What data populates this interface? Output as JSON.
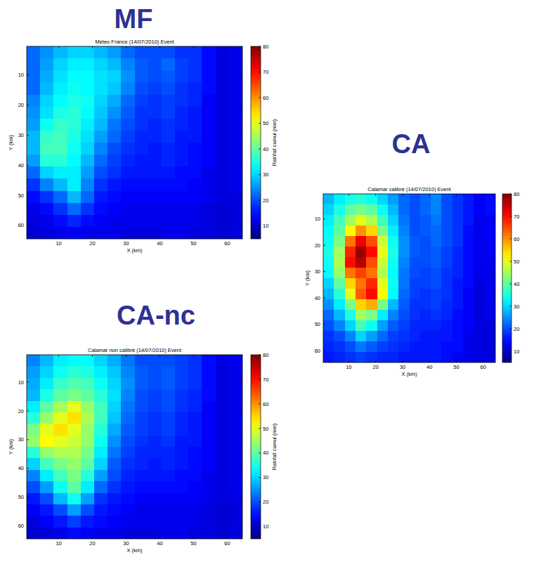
{
  "chart_data": [
    {
      "type": "heatmap",
      "header": "MF",
      "title": "Meteo France (14/07/2010) Event",
      "xlabel": "X (km)",
      "ylabel": "Y (km)",
      "colorbar_label": "Rainfall cumul (mm)",
      "xlim": [
        0.5,
        64.5
      ],
      "ylim": [
        0.5,
        64.5
      ],
      "xticks": [
        10,
        20,
        30,
        40,
        50,
        60
      ],
      "yticks": [
        10,
        20,
        30,
        40,
        50,
        60
      ],
      "color_range": [
        5,
        80
      ],
      "color_ticks": [
        10,
        20,
        30,
        40,
        50,
        60,
        70,
        80
      ],
      "cells": [
        [
          22,
          25,
          28,
          30,
          30,
          28,
          26,
          22,
          20,
          20,
          20,
          18,
          18,
          15,
          12,
          13
        ],
        [
          22,
          26,
          30,
          32,
          32,
          30,
          28,
          24,
          21,
          20,
          22,
          19,
          18,
          15,
          12,
          13
        ],
        [
          22,
          27,
          31,
          33,
          33,
          31,
          30,
          25,
          21,
          20,
          21,
          19,
          18,
          15,
          12,
          13
        ],
        [
          22,
          28,
          32,
          34,
          33,
          31,
          29,
          24,
          20,
          19,
          20,
          18,
          17,
          15,
          12,
          13
        ],
        [
          24,
          30,
          33,
          35,
          34,
          30,
          27,
          22,
          19,
          18,
          19,
          18,
          17,
          14,
          12,
          13
        ],
        [
          25,
          31,
          35,
          36,
          33,
          29,
          25,
          21,
          18,
          18,
          19,
          17,
          16,
          14,
          12,
          13
        ],
        [
          26,
          34,
          37,
          36,
          32,
          28,
          23,
          20,
          18,
          17,
          18,
          17,
          16,
          14,
          12,
          13
        ],
        [
          28,
          37,
          38,
          35,
          31,
          26,
          22,
          19,
          17,
          17,
          18,
          16,
          16,
          14,
          12,
          13
        ],
        [
          28,
          38,
          38,
          34,
          30,
          24,
          20,
          18,
          17,
          16,
          17,
          16,
          15,
          14,
          12,
          13
        ],
        [
          26,
          36,
          36,
          33,
          28,
          22,
          19,
          17,
          16,
          16,
          17,
          16,
          15,
          14,
          12,
          13
        ],
        [
          22,
          30,
          32,
          32,
          26,
          20,
          18,
          16,
          16,
          16,
          16,
          15,
          15,
          13,
          12,
          13
        ],
        [
          18,
          24,
          28,
          32,
          24,
          18,
          16,
          15,
          15,
          15,
          15,
          15,
          14,
          13,
          12,
          13
        ],
        [
          15,
          18,
          22,
          28,
          22,
          16,
          15,
          14,
          14,
          14,
          14,
          14,
          14,
          13,
          12,
          12
        ],
        [
          13,
          15,
          18,
          22,
          18,
          15,
          14,
          13,
          13,
          13,
          13,
          13,
          13,
          12,
          11,
          12
        ],
        [
          12,
          13,
          15,
          17,
          15,
          14,
          13,
          13,
          13,
          13,
          13,
          13,
          13,
          12,
          11,
          12
        ],
        [
          11,
          12,
          13,
          14,
          13,
          13,
          13,
          12,
          12,
          12,
          13,
          13,
          12,
          12,
          11,
          12
        ]
      ]
    },
    {
      "type": "heatmap",
      "header": "CA",
      "title": "Calamar calibré (14/07/2010) Event",
      "xlabel": "X (km)",
      "ylabel": "Y (km)",
      "xlim": [
        0.5,
        64.5
      ],
      "ylim": [
        0.5,
        64.5
      ],
      "xticks": [
        10,
        20,
        30,
        40,
        50,
        60
      ],
      "yticks": [
        10,
        20,
        30,
        40,
        50,
        60
      ],
      "color_range": [
        5,
        80
      ],
      "color_ticks": [
        10,
        20,
        30,
        40,
        50,
        60,
        70,
        80
      ],
      "cells": [
        [
          28,
          32,
          35,
          36,
          34,
          30,
          26,
          22,
          20,
          22,
          24,
          20,
          18,
          16,
          14,
          15
        ],
        [
          30,
          35,
          40,
          42,
          40,
          34,
          28,
          22,
          20,
          22,
          24,
          20,
          18,
          16,
          14,
          15
        ],
        [
          32,
          38,
          45,
          50,
          46,
          38,
          30,
          23,
          20,
          21,
          23,
          20,
          18,
          16,
          13,
          14
        ],
        [
          33,
          40,
          52,
          60,
          55,
          42,
          32,
          24,
          20,
          21,
          22,
          20,
          18,
          15,
          13,
          14
        ],
        [
          34,
          42,
          62,
          72,
          65,
          48,
          34,
          25,
          21,
          20,
          22,
          20,
          18,
          15,
          13,
          14
        ],
        [
          35,
          45,
          68,
          78,
          70,
          50,
          35,
          25,
          21,
          20,
          21,
          19,
          17,
          15,
          13,
          14
        ],
        [
          34,
          46,
          70,
          76,
          65,
          48,
          34,
          24,
          20,
          20,
          21,
          19,
          17,
          15,
          13,
          13
        ],
        [
          33,
          44,
          62,
          66,
          62,
          46,
          33,
          23,
          20,
          19,
          20,
          18,
          17,
          15,
          13,
          13
        ],
        [
          30,
          40,
          55,
          62,
          68,
          50,
          34,
          23,
          19,
          19,
          20,
          18,
          16,
          15,
          12,
          13
        ],
        [
          28,
          36,
          50,
          64,
          70,
          52,
          33,
          22,
          19,
          18,
          19,
          18,
          16,
          14,
          12,
          13
        ],
        [
          25,
          32,
          42,
          55,
          58,
          42,
          28,
          21,
          18,
          18,
          19,
          17,
          16,
          14,
          12,
          13
        ],
        [
          22,
          28,
          35,
          45,
          42,
          32,
          24,
          20,
          18,
          17,
          18,
          17,
          15,
          14,
          12,
          13
        ],
        [
          20,
          24,
          30,
          38,
          34,
          26,
          21,
          19,
          17,
          17,
          17,
          16,
          15,
          14,
          12,
          12
        ],
        [
          18,
          20,
          24,
          30,
          26,
          22,
          19,
          18,
          17,
          16,
          16,
          16,
          15,
          13,
          12,
          12
        ],
        [
          17,
          18,
          20,
          23,
          21,
          19,
          18,
          17,
          16,
          16,
          16,
          15,
          15,
          13,
          12,
          12
        ],
        [
          16,
          17,
          18,
          19,
          18,
          17,
          17,
          16,
          16,
          16,
          16,
          15,
          14,
          13,
          12,
          12
        ]
      ]
    },
    {
      "type": "heatmap",
      "header": "CA-nc",
      "title": "Calamar non calibré (14/07/2010) Event",
      "xlabel": "X (km)",
      "ylabel": "Y (km)",
      "colorbar_label": "Rainfall cumul (mm)",
      "xlim": [
        0.5,
        64.5
      ],
      "ylim": [
        0.5,
        64.5
      ],
      "xticks": [
        10,
        20,
        30,
        40,
        50,
        60
      ],
      "yticks": [
        10,
        20,
        30,
        40,
        50,
        60
      ],
      "color_range": [
        5,
        80
      ],
      "color_ticks": [
        10,
        20,
        30,
        40,
        50,
        60,
        70,
        80
      ],
      "cells": [
        [
          24,
          28,
          32,
          33,
          33,
          30,
          27,
          23,
          20,
          20,
          20,
          19,
          18,
          15,
          12,
          13
        ],
        [
          26,
          30,
          34,
          36,
          35,
          32,
          29,
          24,
          21,
          20,
          21,
          19,
          18,
          15,
          12,
          13
        ],
        [
          27,
          32,
          37,
          39,
          38,
          34,
          30,
          25,
          21,
          20,
          21,
          19,
          18,
          15,
          12,
          13
        ],
        [
          28,
          35,
          40,
          42,
          40,
          36,
          31,
          24,
          20,
          19,
          20,
          18,
          17,
          15,
          12,
          13
        ],
        [
          32,
          40,
          45,
          50,
          44,
          38,
          30,
          23,
          20,
          19,
          20,
          18,
          17,
          14,
          12,
          13
        ],
        [
          36,
          44,
          50,
          54,
          46,
          38,
          29,
          22,
          19,
          18,
          19,
          17,
          16,
          14,
          12,
          13
        ],
        [
          42,
          50,
          54,
          50,
          44,
          36,
          27,
          21,
          19,
          18,
          19,
          17,
          16,
          14,
          12,
          13
        ],
        [
          44,
          52,
          50,
          48,
          44,
          34,
          25,
          20,
          18,
          17,
          18,
          16,
          16,
          14,
          12,
          13
        ],
        [
          36,
          44,
          46,
          46,
          42,
          32,
          23,
          19,
          17,
          17,
          17,
          16,
          15,
          14,
          12,
          13
        ],
        [
          30,
          38,
          42,
          44,
          40,
          30,
          21,
          18,
          17,
          16,
          17,
          16,
          15,
          14,
          12,
          13
        ],
        [
          24,
          32,
          38,
          42,
          36,
          26,
          20,
          17,
          16,
          16,
          16,
          15,
          15,
          13,
          12,
          13
        ],
        [
          20,
          26,
          34,
          40,
          32,
          22,
          18,
          16,
          15,
          15,
          15,
          15,
          14,
          13,
          12,
          13
        ],
        [
          16,
          20,
          28,
          34,
          26,
          18,
          16,
          15,
          14,
          14,
          14,
          14,
          14,
          13,
          12,
          12
        ],
        [
          14,
          16,
          20,
          26,
          20,
          16,
          15,
          14,
          13,
          13,
          13,
          13,
          13,
          12,
          11,
          12
        ],
        [
          12,
          14,
          16,
          19,
          16,
          15,
          14,
          13,
          13,
          13,
          13,
          13,
          13,
          12,
          11,
          12
        ],
        [
          11,
          12,
          13,
          15,
          14,
          13,
          13,
          12,
          12,
          12,
          13,
          13,
          12,
          12,
          11,
          12
        ]
      ]
    }
  ]
}
